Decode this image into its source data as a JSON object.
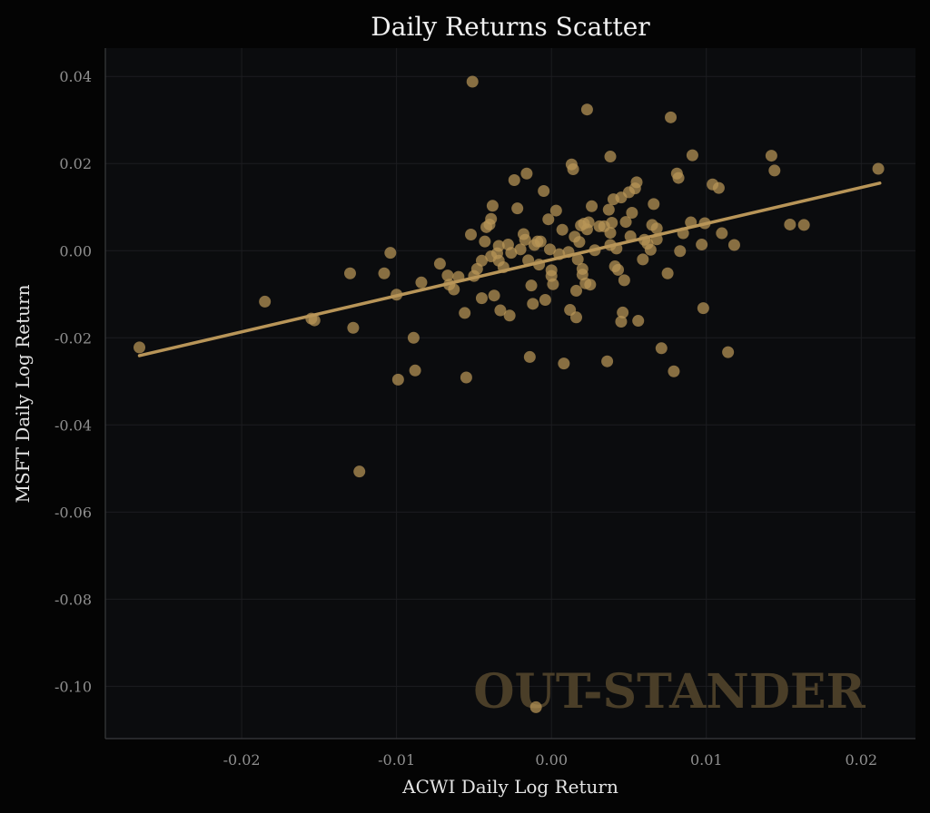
{
  "chart_data": {
    "type": "scatter",
    "title": "Daily Returns Scatter",
    "xlabel": "ACWI Daily Log Return",
    "ylabel": "MSFT Daily Log Return",
    "xlim": [
      -0.0288,
      0.0235
    ],
    "ylim": [
      -0.112,
      0.0465
    ],
    "xticks": [
      -0.02,
      -0.01,
      0.0,
      0.01,
      0.02
    ],
    "xtick_labels": [
      "-0.02",
      "-0.01",
      "0.00",
      "0.01",
      "0.02"
    ],
    "yticks": [
      0.04,
      0.02,
      0.0,
      -0.02,
      -0.04,
      -0.06,
      -0.08,
      -0.1
    ],
    "ytick_labels": [
      "0.04",
      "0.02",
      "0.00",
      "-0.02",
      "-0.04",
      "-0.06",
      "-0.08",
      "-0.10"
    ],
    "grid": true,
    "colors": {
      "point": "#b89558",
      "line": "#b89558",
      "background": "#0b0c0e",
      "outer": "#040404"
    },
    "regression_line": {
      "x": [
        -0.0266,
        0.0212
      ],
      "y": [
        -0.0241,
        0.0155
      ]
    },
    "watermark": "OUT-STANDER",
    "points": [
      {
        "x": -0.0266,
        "y": -0.0222
      },
      {
        "x": -0.0185,
        "y": -0.0117
      },
      {
        "x": -0.0155,
        "y": -0.0156
      },
      {
        "x": -0.0153,
        "y": -0.016
      },
      {
        "x": -0.013,
        "y": -0.0052
      },
      {
        "x": -0.0128,
        "y": -0.0177
      },
      {
        "x": -0.0124,
        "y": -0.0507
      },
      {
        "x": -0.0108,
        "y": -0.0052
      },
      {
        "x": -0.0104,
        "y": -0.0005
      },
      {
        "x": -0.01,
        "y": -0.0101
      },
      {
        "x": -0.0099,
        "y": -0.0296
      },
      {
        "x": -0.0089,
        "y": -0.02
      },
      {
        "x": -0.0088,
        "y": -0.0275
      },
      {
        "x": -0.0084,
        "y": -0.0073
      },
      {
        "x": -0.0072,
        "y": -0.003
      },
      {
        "x": -0.0067,
        "y": -0.0057
      },
      {
        "x": -0.0066,
        "y": -0.0078
      },
      {
        "x": -0.0063,
        "y": -0.0089
      },
      {
        "x": -0.006,
        "y": -0.006
      },
      {
        "x": -0.0056,
        "y": -0.0143
      },
      {
        "x": -0.0055,
        "y": -0.0291
      },
      {
        "x": -0.0052,
        "y": 0.0037
      },
      {
        "x": -0.0051,
        "y": 0.0388
      },
      {
        "x": -0.005,
        "y": -0.0058
      },
      {
        "x": -0.0048,
        "y": -0.0042
      },
      {
        "x": -0.0045,
        "y": -0.0023
      },
      {
        "x": -0.0045,
        "y": -0.0109
      },
      {
        "x": -0.0043,
        "y": 0.0021
      },
      {
        "x": -0.0042,
        "y": 0.0054
      },
      {
        "x": -0.004,
        "y": 0.006
      },
      {
        "x": -0.0039,
        "y": 0.0073
      },
      {
        "x": -0.0039,
        "y": -0.0013
      },
      {
        "x": -0.0038,
        "y": 0.0103
      },
      {
        "x": -0.0037,
        "y": -0.0103
      },
      {
        "x": -0.0035,
        "y": -0.0006
      },
      {
        "x": -0.0034,
        "y": -0.0023
      },
      {
        "x": -0.0034,
        "y": 0.0011
      },
      {
        "x": -0.0033,
        "y": -0.0137
      },
      {
        "x": -0.0031,
        "y": -0.0038
      },
      {
        "x": -0.0028,
        "y": 0.0014
      },
      {
        "x": -0.0027,
        "y": -0.0149
      },
      {
        "x": -0.0026,
        "y": -0.0005
      },
      {
        "x": -0.0024,
        "y": 0.0162
      },
      {
        "x": -0.0022,
        "y": 0.0097
      },
      {
        "x": -0.002,
        "y": 0.0003
      },
      {
        "x": -0.0018,
        "y": 0.0038
      },
      {
        "x": -0.0017,
        "y": 0.0025
      },
      {
        "x": -0.0016,
        "y": 0.0177
      },
      {
        "x": -0.0015,
        "y": -0.0022
      },
      {
        "x": -0.0014,
        "y": -0.0244
      },
      {
        "x": -0.0013,
        "y": -0.008
      },
      {
        "x": -0.0012,
        "y": -0.0122
      },
      {
        "x": -0.0011,
        "y": 0.0013
      },
      {
        "x": -0.001,
        "y": -0.1048
      },
      {
        "x": -0.0009,
        "y": 0.0021
      },
      {
        "x": -0.0008,
        "y": -0.0032
      },
      {
        "x": -0.0007,
        "y": 0.0021
      },
      {
        "x": -0.0005,
        "y": 0.0137
      },
      {
        "x": -0.0004,
        "y": -0.0113
      },
      {
        "x": -0.0002,
        "y": 0.0072
      },
      {
        "x": -0.0001,
        "y": 0.0003
      },
      {
        "x": 0.0,
        "y": -0.0045
      },
      {
        "x": 0.0,
        "y": -0.0058
      },
      {
        "x": 0.0001,
        "y": -0.0077
      },
      {
        "x": 0.0003,
        "y": 0.0092
      },
      {
        "x": 0.0005,
        "y": -0.0008
      },
      {
        "x": 0.0007,
        "y": 0.0048
      },
      {
        "x": 0.0008,
        "y": -0.0259
      },
      {
        "x": 0.0011,
        "y": -0.0003
      },
      {
        "x": 0.0012,
        "y": -0.0136
      },
      {
        "x": 0.0013,
        "y": 0.0198
      },
      {
        "x": 0.0014,
        "y": 0.0187
      },
      {
        "x": 0.0015,
        "y": 0.0032
      },
      {
        "x": 0.0016,
        "y": -0.0153
      },
      {
        "x": 0.0016,
        "y": -0.0092
      },
      {
        "x": 0.0017,
        "y": -0.002
      },
      {
        "x": 0.0018,
        "y": 0.002
      },
      {
        "x": 0.0019,
        "y": 0.0058
      },
      {
        "x": 0.002,
        "y": -0.0042
      },
      {
        "x": 0.002,
        "y": -0.0055
      },
      {
        "x": 0.0021,
        "y": 0.0062
      },
      {
        "x": 0.0022,
        "y": -0.0075
      },
      {
        "x": 0.0023,
        "y": 0.0049
      },
      {
        "x": 0.0023,
        "y": 0.0324
      },
      {
        "x": 0.0024,
        "y": 0.0065
      },
      {
        "x": 0.0025,
        "y": -0.0078
      },
      {
        "x": 0.0026,
        "y": 0.0102
      },
      {
        "x": 0.0028,
        "y": 0.0001
      },
      {
        "x": 0.0031,
        "y": 0.0056
      },
      {
        "x": 0.0034,
        "y": 0.0056
      },
      {
        "x": 0.0036,
        "y": -0.0254
      },
      {
        "x": 0.0037,
        "y": 0.0094
      },
      {
        "x": 0.0038,
        "y": 0.0216
      },
      {
        "x": 0.0038,
        "y": 0.0041
      },
      {
        "x": 0.0038,
        "y": 0.0013
      },
      {
        "x": 0.0039,
        "y": 0.0064
      },
      {
        "x": 0.004,
        "y": 0.0118
      },
      {
        "x": 0.0041,
        "y": -0.0036
      },
      {
        "x": 0.0042,
        "y": 0.0005
      },
      {
        "x": 0.0043,
        "y": -0.0044
      },
      {
        "x": 0.0045,
        "y": -0.0163
      },
      {
        "x": 0.0045,
        "y": 0.0122
      },
      {
        "x": 0.0046,
        "y": -0.0142
      },
      {
        "x": 0.0047,
        "y": -0.0068
      },
      {
        "x": 0.0048,
        "y": 0.0066
      },
      {
        "x": 0.005,
        "y": 0.0134
      },
      {
        "x": 0.0051,
        "y": 0.0033
      },
      {
        "x": 0.0052,
        "y": 0.0087
      },
      {
        "x": 0.0054,
        "y": 0.0143
      },
      {
        "x": 0.0055,
        "y": 0.0157
      },
      {
        "x": 0.0056,
        "y": -0.0161
      },
      {
        "x": 0.0059,
        "y": -0.002
      },
      {
        "x": 0.006,
        "y": 0.0025
      },
      {
        "x": 0.0062,
        "y": 0.0016
      },
      {
        "x": 0.0064,
        "y": 0.0002
      },
      {
        "x": 0.0065,
        "y": 0.0059
      },
      {
        "x": 0.0066,
        "y": 0.0107
      },
      {
        "x": 0.0068,
        "y": 0.0051
      },
      {
        "x": 0.0068,
        "y": 0.0026
      },
      {
        "x": 0.0071,
        "y": -0.0224
      },
      {
        "x": 0.0075,
        "y": -0.0052
      },
      {
        "x": 0.0077,
        "y": 0.0306
      },
      {
        "x": 0.0079,
        "y": -0.0277
      },
      {
        "x": 0.0081,
        "y": 0.0177
      },
      {
        "x": 0.0082,
        "y": 0.0167
      },
      {
        "x": 0.0083,
        "y": -0.0001
      },
      {
        "x": 0.0085,
        "y": 0.004
      },
      {
        "x": 0.009,
        "y": 0.0065
      },
      {
        "x": 0.0091,
        "y": 0.0219
      },
      {
        "x": 0.0097,
        "y": 0.0014
      },
      {
        "x": 0.0098,
        "y": -0.0132
      },
      {
        "x": 0.0099,
        "y": 0.0063
      },
      {
        "x": 0.0104,
        "y": 0.0152
      },
      {
        "x": 0.0108,
        "y": 0.0144
      },
      {
        "x": 0.011,
        "y": 0.004
      },
      {
        "x": 0.0114,
        "y": -0.0233
      },
      {
        "x": 0.0118,
        "y": 0.0013
      },
      {
        "x": 0.0142,
        "y": 0.0218
      },
      {
        "x": 0.0144,
        "y": 0.0184
      },
      {
        "x": 0.0154,
        "y": 0.006
      },
      {
        "x": 0.0163,
        "y": 0.0059
      },
      {
        "x": 0.0211,
        "y": 0.0188
      }
    ]
  }
}
